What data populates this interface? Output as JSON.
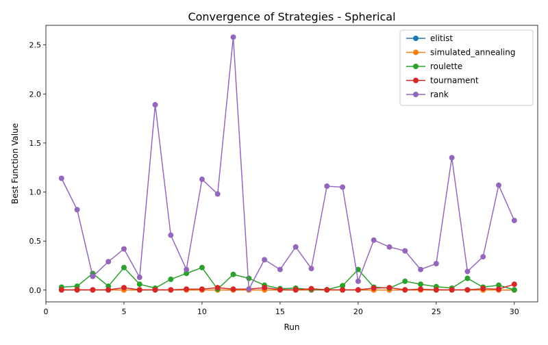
{
  "chart_data": {
    "type": "line",
    "title": "Convergence of Strategies - Spherical",
    "xlabel": "Run",
    "ylabel": "Best Function Value",
    "xlim": [
      0,
      31.5
    ],
    "ylim": [
      -0.12,
      2.7
    ],
    "xticks": [
      0,
      5,
      10,
      15,
      20,
      25,
      30
    ],
    "yticks": [
      0.0,
      0.5,
      1.0,
      1.5,
      2.0,
      2.5
    ],
    "xtick_labels": [
      "0",
      "5",
      "10",
      "15",
      "20",
      "25",
      "30"
    ],
    "ytick_labels": [
      "0.0",
      "0.5",
      "1.0",
      "1.5",
      "2.0",
      "2.5"
    ],
    "grid": false,
    "legend_position": "top-right",
    "x": [
      1,
      2,
      3,
      4,
      5,
      6,
      7,
      8,
      9,
      10,
      11,
      12,
      13,
      14,
      15,
      16,
      17,
      18,
      19,
      20,
      21,
      22,
      23,
      24,
      25,
      26,
      27,
      28,
      29,
      30
    ],
    "series": [
      {
        "name": "elitist",
        "color": "#1f77b4",
        "values": [
          0.001,
          0.001,
          0.001,
          0.001,
          0.002,
          0.001,
          0.001,
          0.001,
          0.001,
          0.001,
          0.002,
          0.001,
          0.001,
          0.002,
          0.001,
          0.001,
          0.001,
          0.001,
          0.001,
          0.001,
          0.001,
          0.001,
          0.001,
          0.001,
          0.001,
          0.001,
          0.001,
          0.001,
          0.001,
          0.001
        ]
      },
      {
        "name": "simulated_annealing",
        "color": "#ff7f0e",
        "values": [
          0.002,
          0.002,
          0.001,
          0.002,
          0.001,
          0.002,
          0.002,
          0.001,
          0.002,
          0.001,
          0.001,
          0.002,
          0.001,
          0.001,
          0.002,
          0.001,
          0.002,
          0.001,
          0.001,
          0.002,
          0.001,
          0.001,
          0.002,
          0.001,
          0.002,
          0.001,
          0.002,
          0.001,
          0.001,
          0.002
        ]
      },
      {
        "name": "roulette",
        "color": "#2ca02c",
        "values": [
          0.03,
          0.04,
          0.17,
          0.04,
          0.23,
          0.06,
          0.02,
          0.11,
          0.17,
          0.23,
          0.01,
          0.16,
          0.12,
          0.05,
          0.015,
          0.02,
          0.005,
          0.005,
          0.045,
          0.21,
          0.03,
          0.02,
          0.09,
          0.06,
          0.035,
          0.02,
          0.12,
          0.03,
          0.05,
          0.003
        ]
      },
      {
        "name": "tournament",
        "color": "#d62728",
        "values": [
          0.003,
          0.003,
          0.003,
          0.003,
          0.025,
          0.003,
          0.003,
          0.003,
          0.01,
          0.01,
          0.025,
          0.01,
          0.01,
          0.025,
          0.005,
          0.003,
          0.015,
          0.003,
          0.003,
          0.003,
          0.02,
          0.025,
          0.003,
          0.01,
          0.003,
          0.003,
          0.003,
          0.015,
          0.01,
          0.06
        ]
      },
      {
        "name": "rank",
        "color": "#9467bd",
        "values": [
          1.14,
          0.82,
          0.14,
          0.29,
          0.42,
          0.13,
          1.89,
          0.56,
          0.21,
          1.13,
          0.98,
          2.58,
          0.01,
          0.31,
          0.21,
          0.44,
          0.22,
          1.06,
          1.05,
          0.09,
          0.51,
          0.44,
          0.4,
          0.21,
          0.27,
          1.35,
          0.19,
          0.34,
          1.07,
          0.71
        ]
      }
    ]
  }
}
